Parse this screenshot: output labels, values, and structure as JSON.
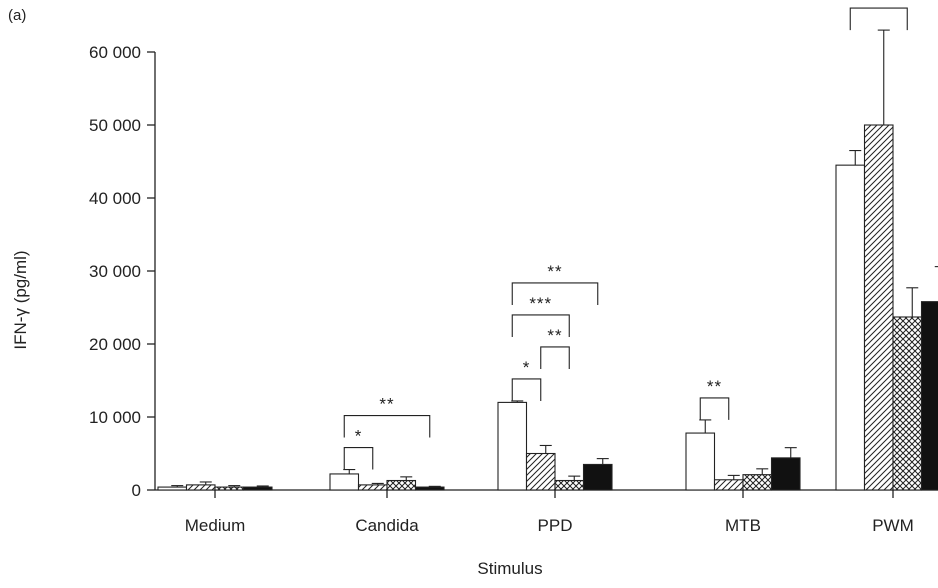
{
  "panel_label": "(a)",
  "chart_data": {
    "type": "bar",
    "title": "",
    "xlabel": "Stimulus",
    "ylabel": "IFN-γ (pg/ml)",
    "ylim": [
      0,
      60000
    ],
    "yticks": [
      0,
      10000,
      20000,
      30000,
      40000,
      50000,
      60000
    ],
    "ytick_labels": [
      "0",
      "10 000",
      "20 000",
      "30 000",
      "40 000",
      "50 000",
      "60 000"
    ],
    "grid": false,
    "legend": "none",
    "categories": [
      "Medium",
      "Candida",
      "PPD",
      "MTB",
      "PWM"
    ],
    "series": [
      {
        "pattern": "open",
        "values": [
          400,
          2200,
          12000,
          7800,
          44500
        ],
        "errors": [
          200,
          600,
          200,
          1800,
          2000
        ]
      },
      {
        "pattern": "hatched",
        "values": [
          700,
          700,
          5000,
          1400,
          50000
        ],
        "errors": [
          400,
          200,
          1100,
          600,
          13000
        ]
      },
      {
        "pattern": "cross-hatched",
        "values": [
          400,
          1300,
          1300,
          2100,
          23700
        ],
        "errors": [
          200,
          500,
          600,
          800,
          4000
        ]
      },
      {
        "pattern": "solid",
        "values": [
          400,
          400,
          3500,
          4400,
          25800
        ],
        "errors": [
          150,
          100,
          800,
          1400,
          4800
        ]
      }
    ],
    "annotations": [
      {
        "category": 1,
        "from": 0,
        "to": 1,
        "label": "*"
      },
      {
        "category": 1,
        "from": 0,
        "to": 3,
        "label": "**"
      },
      {
        "category": 2,
        "from": 0,
        "to": 1,
        "label": "*"
      },
      {
        "category": 2,
        "from": 0,
        "to": 2,
        "label": "***"
      },
      {
        "category": 2,
        "from": 0,
        "to": 3,
        "label": "**"
      },
      {
        "category": 2,
        "from": 1,
        "to": 2,
        "label": "**"
      },
      {
        "category": 3,
        "from": 0,
        "to": 1,
        "label": "**"
      },
      {
        "category": 4,
        "from": 0,
        "to": 2,
        "label": "***"
      },
      {
        "category": 4,
        "from": 0,
        "to": 3,
        "label": "**"
      }
    ]
  }
}
